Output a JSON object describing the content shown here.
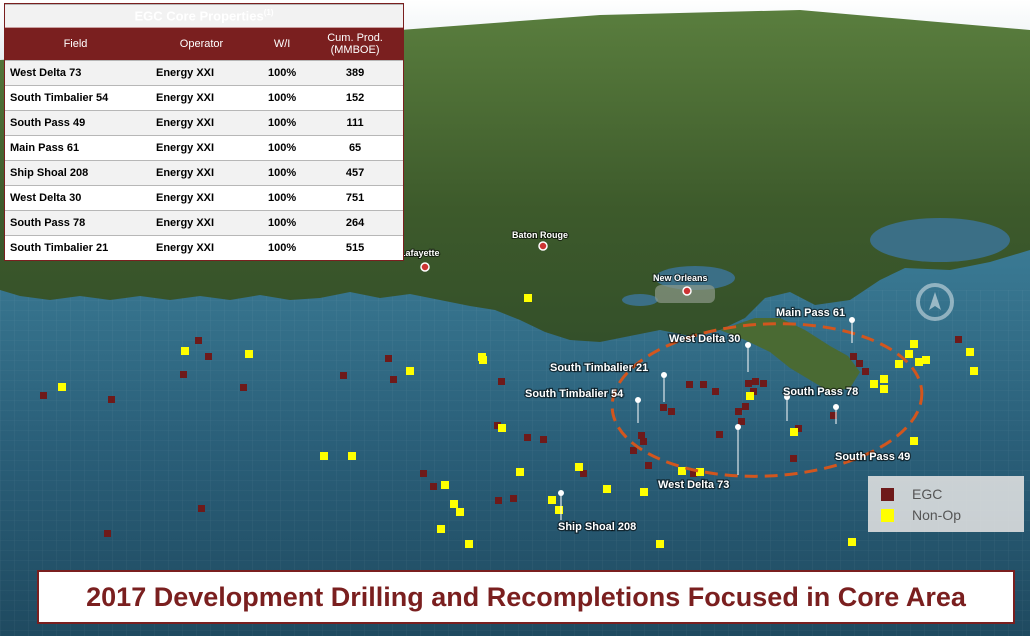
{
  "table": {
    "title": "EGC Core Properties",
    "title_note": "(1)",
    "headers": [
      "Field",
      "Operator",
      "W/I",
      "Cum. Prod.",
      "(MMBOE)"
    ],
    "rows": [
      [
        "West Delta 73",
        "Energy XXI",
        "100%",
        "389"
      ],
      [
        "South Timbalier 54",
        "Energy XXI",
        "100%",
        "152"
      ],
      [
        "South Pass 49",
        "Energy XXI",
        "100%",
        "111"
      ],
      [
        "Main Pass 61",
        "Energy XXI",
        "100%",
        "65"
      ],
      [
        "Ship Shoal 208",
        "Energy XXI",
        "100%",
        "457"
      ],
      [
        "West Delta 30",
        "Energy XXI",
        "100%",
        "751"
      ],
      [
        "South Pass 78",
        "Energy XXI",
        "100%",
        "264"
      ],
      [
        "South Timbalier 21",
        "Energy XXI",
        "100%",
        "515"
      ]
    ]
  },
  "cities": [
    "Lafayette",
    "Baton Rouge",
    "New Orleans"
  ],
  "field_labels": [
    "Main Pass 61",
    "West Delta 30",
    "South Timbalier 21",
    "South Timbalier 54",
    "South Pass 78",
    "South Pass 49",
    "West Delta 73",
    "Ship Shoal 208"
  ],
  "legend": [
    {
      "label": "EGC",
      "color": "#6e1a1a"
    },
    {
      "label": "Non-Op",
      "color": "#ffff00"
    }
  ],
  "banner": "2017 Development Drilling and Recompletions Focused in Core Area",
  "colors": {
    "brand": "#7a1f1f",
    "ellipse": "#d2561e",
    "water": "#2c5f78",
    "land": "#3f5c2e"
  }
}
